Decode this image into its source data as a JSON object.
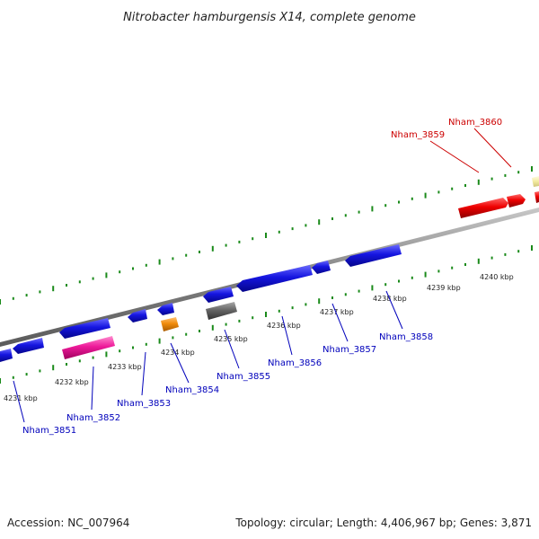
{
  "title": "Nitrobacter hamburgensis X14, complete genome",
  "footer": {
    "accession": "Accession: NC_007964",
    "summary": "Topology: circular; Length: 4,406,967 bp; Genes: 3,871"
  },
  "colors": {
    "forward_ticks": "#1a8a1a",
    "reverse_ticks": "#1a8a1a",
    "backbone": "#808080",
    "label_forward": "#cc0000",
    "label_reverse": "#0000bb"
  },
  "scale_labels": [
    "4231 kbp",
    "4232 kbp",
    "4233 kbp",
    "4234 kbp",
    "4235 kbp",
    "4236 kbp",
    "4237 kbp",
    "4238 kbp",
    "4239 kbp",
    "4240 kbp"
  ],
  "features": [
    {
      "kind": "cds",
      "strand": "reverse",
      "color": "#1515e0"
    },
    {
      "kind": "cds",
      "strand": "reverse",
      "color": "#1515e0"
    },
    {
      "kind": "cds",
      "strand": "reverse",
      "color": "#1515e0"
    },
    {
      "kind": "cds",
      "strand": "reverse",
      "color": "#1515e0"
    },
    {
      "kind": "cds",
      "strand": "reverse",
      "color": "#1515e0"
    },
    {
      "kind": "cds",
      "strand": "reverse",
      "color": "#1515e0"
    },
    {
      "kind": "cds",
      "strand": "reverse",
      "color": "#1515e0"
    },
    {
      "kind": "cds",
      "strand": "reverse",
      "color": "#1515e0"
    },
    {
      "kind": "cds",
      "strand": "reverse",
      "color": "#1515e0"
    },
    {
      "kind": "rRNA",
      "strand": "reverse",
      "color": "#ee1a9a"
    },
    {
      "kind": "tRNA",
      "strand": "reverse",
      "color": "#f08c0c"
    },
    {
      "kind": "other",
      "strand": "reverse",
      "color": "#666666"
    },
    {
      "kind": "cds",
      "strand": "forward",
      "color": "#ee0000"
    },
    {
      "kind": "cds",
      "strand": "forward",
      "color": "#ee0000"
    },
    {
      "kind": "cds",
      "strand": "forward",
      "color": "#ee0000"
    },
    {
      "kind": "other",
      "strand": "forward",
      "color": "#f3eba0"
    }
  ],
  "gene_labels": [
    {
      "name": "Nham_3851",
      "strand": "reverse"
    },
    {
      "name": "Nham_3852",
      "strand": "reverse"
    },
    {
      "name": "Nham_3853",
      "strand": "reverse"
    },
    {
      "name": "Nham_3854",
      "strand": "reverse"
    },
    {
      "name": "Nham_3855",
      "strand": "reverse"
    },
    {
      "name": "Nham_3856",
      "strand": "reverse"
    },
    {
      "name": "Nham_3857",
      "strand": "reverse"
    },
    {
      "name": "Nham_3858",
      "strand": "reverse"
    },
    {
      "name": "Nham_3859",
      "strand": "forward"
    },
    {
      "name": "Nham_3860",
      "strand": "forward"
    }
  ]
}
